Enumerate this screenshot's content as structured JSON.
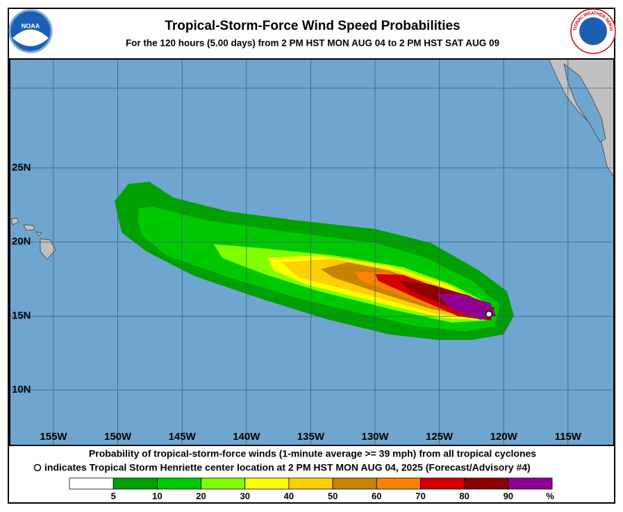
{
  "header": {
    "title": "Tropical-Storm-Force Wind Speed Probabilities",
    "subtitle": "For the 120 hours (5.00 days) from 2 PM HST MON AUG 04 to 2 PM HST SAT AUG 09",
    "left_logo": "NOAA",
    "right_logo": "NATIONAL WEATHER SERVICE"
  },
  "map": {
    "lat_labels": [
      "25N",
      "20N",
      "15N",
      "10N"
    ],
    "lon_labels": [
      "155W",
      "150W",
      "145W",
      "140W",
      "135W",
      "130W",
      "125W",
      "120W",
      "115W"
    ]
  },
  "footer": {
    "line1": "Probability of tropical-storm-force winds (1-minute average >= 39 mph) from all tropical cyclones",
    "line2": "indicates Tropical Storm Henriette center location at 2 PM HST MON AUG 04, 2025 (Forecast/Advisory #4)"
  },
  "legend": {
    "colors": [
      "#ffffff",
      "#00a000",
      "#00c800",
      "#80ff00",
      "#ffff00",
      "#ffd000",
      "#c88200",
      "#ff8000",
      "#d20000",
      "#8c0000",
      "#900090"
    ],
    "labels": [
      "5",
      "10",
      "20",
      "30",
      "40",
      "50",
      "60",
      "70",
      "80",
      "90",
      "%"
    ]
  }
}
